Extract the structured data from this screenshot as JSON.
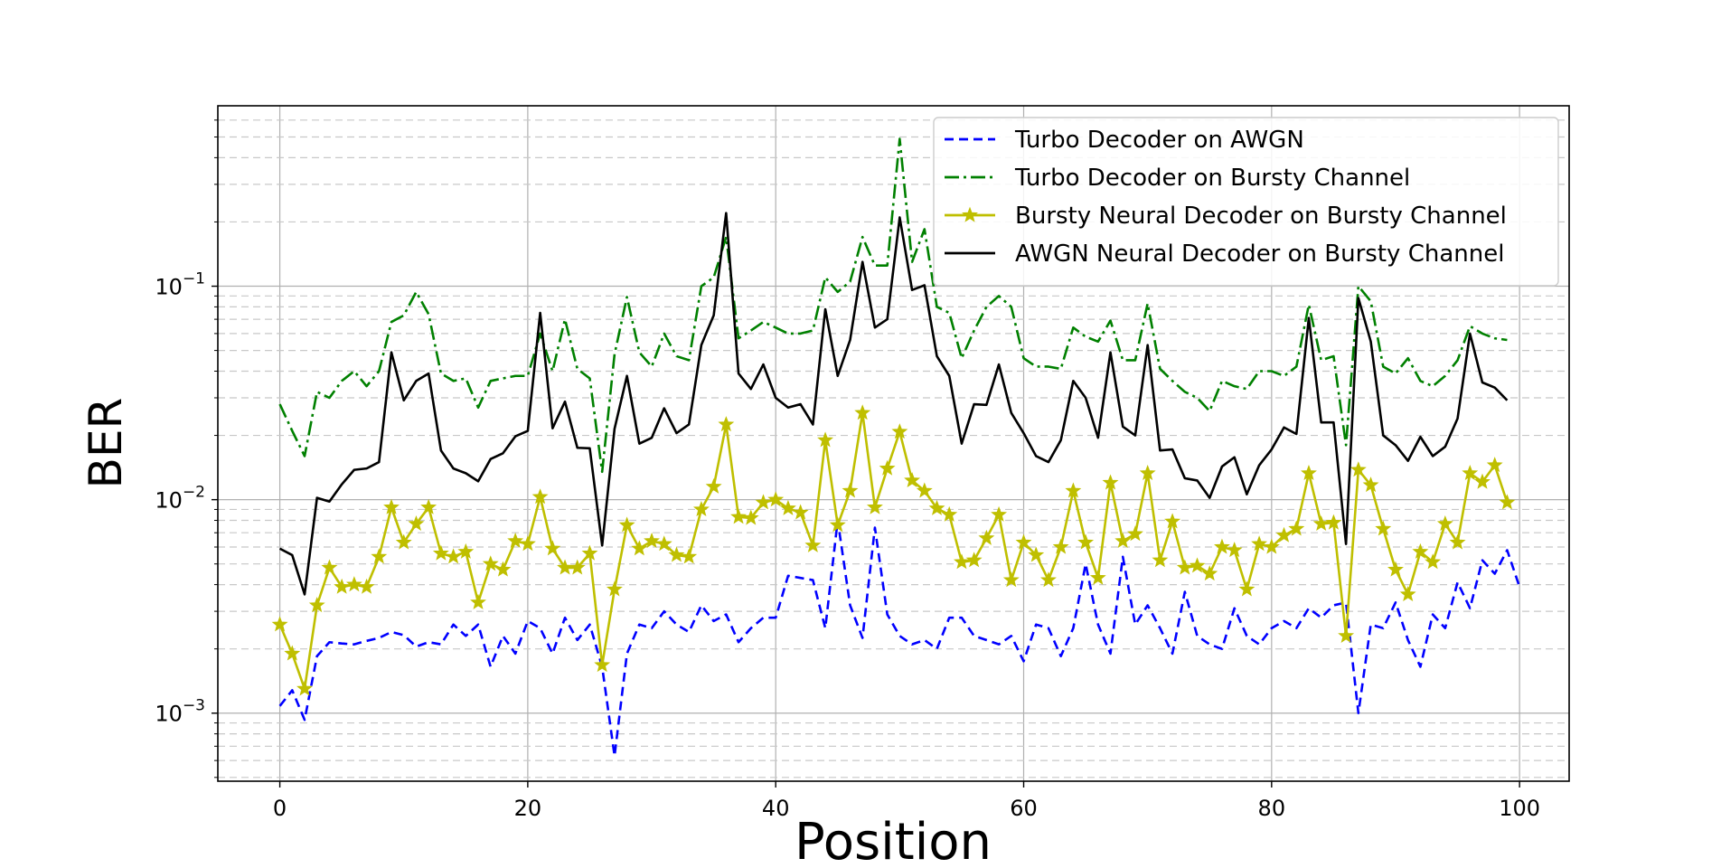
{
  "chart_data": {
    "type": "line",
    "title": "",
    "xlabel": "Position",
    "ylabel": "BER",
    "xlim": [
      -5,
      104
    ],
    "ylim": [
      0.00048,
      0.7
    ],
    "yscale": "log",
    "x_ticks": [
      0,
      20,
      40,
      60,
      80,
      100
    ],
    "x_tick_labels": [
      "0",
      "20",
      "40",
      "60",
      "80",
      "100"
    ],
    "y_ticks": [
      0.001,
      0.01,
      0.1
    ],
    "y_tick_labels": [
      {
        "base": "10",
        "exp": "−3"
      },
      {
        "base": "10",
        "exp": "−2"
      },
      {
        "base": "10",
        "exp": "−1"
      }
    ],
    "grid": {
      "major": true,
      "minor_y": true
    },
    "legend_position": "top-right",
    "series": [
      {
        "name": "Turbo Decoder on AWGN",
        "color": "#0000ff",
        "style": "dashed",
        "values": [
          0.00108,
          0.00128,
          0.00093,
          0.00185,
          0.00215,
          0.00212,
          0.0021,
          0.00218,
          0.00225,
          0.0024,
          0.00232,
          0.00205,
          0.00215,
          0.0021,
          0.0026,
          0.0023,
          0.0026,
          0.00165,
          0.0023,
          0.0019,
          0.0027,
          0.0025,
          0.0019,
          0.0028,
          0.0022,
          0.0026,
          0.00165,
          0.00063,
          0.0019,
          0.0026,
          0.0025,
          0.003,
          0.0026,
          0.0024,
          0.0032,
          0.0027,
          0.0029,
          0.00215,
          0.0025,
          0.0028,
          0.0028,
          0.0044,
          0.0043,
          0.0042,
          0.0025,
          0.008,
          0.0032,
          0.00225,
          0.0074,
          0.0029,
          0.0023,
          0.0021,
          0.0022,
          0.002,
          0.0028,
          0.0028,
          0.0023,
          0.0022,
          0.0021,
          0.0023,
          0.00175,
          0.0026,
          0.0025,
          0.00185,
          0.0025,
          0.005,
          0.0026,
          0.0019,
          0.0054,
          0.0026,
          0.0032,
          0.0025,
          0.0019,
          0.0037,
          0.0023,
          0.0021,
          0.002,
          0.0031,
          0.0023,
          0.0021,
          0.0025,
          0.0027,
          0.0025,
          0.0031,
          0.0028,
          0.0032,
          0.0033,
          0.001,
          0.0026,
          0.0025,
          0.0033,
          0.0022,
          0.00165,
          0.0029,
          0.0025,
          0.0041,
          0.0031,
          0.0052,
          0.0045,
          0.0058,
          0.0039
        ]
      },
      {
        "name": "Turbo Decoder on Bursty Channel",
        "color": "#008000",
        "style": "dashdot",
        "values": [
          0.028,
          0.021,
          0.016,
          0.032,
          0.03,
          0.036,
          0.04,
          0.034,
          0.04,
          0.068,
          0.073,
          0.094,
          0.074,
          0.039,
          0.036,
          0.037,
          0.027,
          0.036,
          0.037,
          0.038,
          0.038,
          0.06,
          0.04,
          0.07,
          0.041,
          0.037,
          0.0135,
          0.048,
          0.089,
          0.049,
          0.042,
          0.06,
          0.047,
          0.045,
          0.1,
          0.11,
          0.17,
          0.057,
          0.062,
          0.068,
          0.064,
          0.06,
          0.06,
          0.062,
          0.11,
          0.094,
          0.105,
          0.17,
          0.125,
          0.125,
          0.49,
          0.13,
          0.185,
          0.08,
          0.075,
          0.046,
          0.062,
          0.08,
          0.09,
          0.08,
          0.046,
          0.042,
          0.042,
          0.041,
          0.064,
          0.058,
          0.055,
          0.069,
          0.045,
          0.045,
          0.083,
          0.041,
          0.036,
          0.032,
          0.03,
          0.026,
          0.036,
          0.034,
          0.033,
          0.04,
          0.04,
          0.038,
          0.042,
          0.082,
          0.045,
          0.047,
          0.018,
          0.1,
          0.085,
          0.042,
          0.039,
          0.046,
          0.036,
          0.034,
          0.038,
          0.045,
          0.065,
          0.06,
          0.057,
          0.056
        ]
      },
      {
        "name": "Bursty Neural Decoder on Bursty Channel",
        "color": "#bfbf00",
        "style": "solid-star",
        "values": [
          0.0026,
          0.0019,
          0.0013,
          0.0032,
          0.0048,
          0.0039,
          0.004,
          0.0039,
          0.0054,
          0.0092,
          0.0063,
          0.0077,
          0.0092,
          0.0056,
          0.0054,
          0.0057,
          0.0033,
          0.005,
          0.0047,
          0.0064,
          0.0062,
          0.0103,
          0.0059,
          0.0048,
          0.0048,
          0.0056,
          0.00168,
          0.0038,
          0.0076,
          0.0059,
          0.0064,
          0.0062,
          0.0055,
          0.0054,
          0.009,
          0.0115,
          0.0225,
          0.0083,
          0.0082,
          0.0097,
          0.01,
          0.0091,
          0.0087,
          0.0061,
          0.019,
          0.0076,
          0.011,
          0.0255,
          0.0092,
          0.014,
          0.0208,
          0.0123,
          0.011,
          0.0091,
          0.0085,
          0.0051,
          0.0052,
          0.0066,
          0.0085,
          0.0042,
          0.0063,
          0.0055,
          0.0042,
          0.006,
          0.011,
          0.0063,
          0.0043,
          0.012,
          0.0064,
          0.0069,
          0.0133,
          0.0052,
          0.0079,
          0.0048,
          0.0049,
          0.0045,
          0.006,
          0.0058,
          0.0038,
          0.0062,
          0.006,
          0.0068,
          0.0073,
          0.0133,
          0.0077,
          0.0078,
          0.0023,
          0.0138,
          0.0117,
          0.0073,
          0.0047,
          0.0036,
          0.0057,
          0.0051,
          0.0077,
          0.0063,
          0.0133,
          0.0121,
          0.0145,
          0.0097
        ]
      },
      {
        "name": "AWGN Neural Decoder on Bursty Channel",
        "color": "#000000",
        "style": "solid",
        "values": [
          0.0059,
          0.0055,
          0.0036,
          0.0102,
          0.0098,
          0.0118,
          0.0138,
          0.014,
          0.015,
          0.049,
          0.0292,
          0.036,
          0.039,
          0.017,
          0.014,
          0.0133,
          0.0122,
          0.0155,
          0.0165,
          0.0198,
          0.021,
          0.075,
          0.0216,
          0.0288,
          0.0175,
          0.0174,
          0.0061,
          0.0215,
          0.038,
          0.0183,
          0.0195,
          0.0268,
          0.0205,
          0.0225,
          0.053,
          0.073,
          0.22,
          0.039,
          0.033,
          0.043,
          0.03,
          0.027,
          0.028,
          0.0225,
          0.078,
          0.038,
          0.056,
          0.13,
          0.064,
          0.07,
          0.21,
          0.096,
          0.101,
          0.047,
          0.038,
          0.0183,
          0.028,
          0.0278,
          0.043,
          0.0255,
          0.0205,
          0.016,
          0.015,
          0.019,
          0.036,
          0.03,
          0.0195,
          0.049,
          0.022,
          0.02,
          0.053,
          0.017,
          0.0172,
          0.0126,
          0.0123,
          0.0102,
          0.0143,
          0.0158,
          0.0106,
          0.0145,
          0.0172,
          0.0218,
          0.0203,
          0.071,
          0.023,
          0.023,
          0.0062,
          0.088,
          0.055,
          0.02,
          0.018,
          0.0152,
          0.0197,
          0.016,
          0.0177,
          0.024,
          0.06,
          0.0354,
          0.0335,
          0.0292
        ]
      }
    ]
  }
}
